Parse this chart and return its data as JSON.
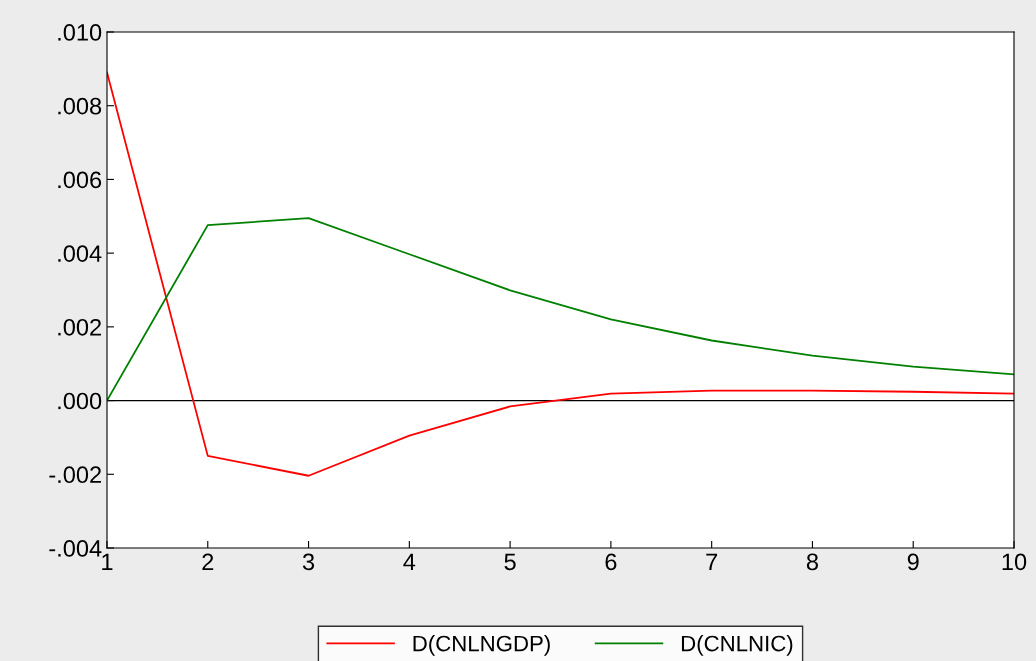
{
  "chart_data": {
    "type": "line",
    "x": [
      1,
      2,
      3,
      4,
      5,
      6,
      7,
      8,
      9,
      10
    ],
    "series": [
      {
        "name": "D(CNLNGDP)",
        "color": "#ff0000",
        "values": [
          0.0089,
          -0.0015,
          -0.00204,
          -0.00095,
          -0.00016,
          0.00019,
          0.00027,
          0.00027,
          0.00024,
          0.00019
        ]
      },
      {
        "name": "D(CNLNIC)",
        "color": "#008000",
        "values": [
          0.0,
          0.00476,
          0.00495,
          0.00397,
          0.00299,
          0.0022,
          0.00163,
          0.00122,
          0.00092,
          0.00071
        ]
      }
    ],
    "xlim": [
      1,
      10
    ],
    "xticks": [
      1,
      2,
      3,
      4,
      5,
      6,
      7,
      8,
      9,
      10
    ],
    "ylim": [
      -0.004,
      0.01
    ],
    "yticks": [
      {
        "value": -0.004,
        "label": "-.004"
      },
      {
        "value": -0.002,
        "label": "-.002"
      },
      {
        "value": 0,
        "label": ".000"
      },
      {
        "value": 0.002,
        "label": ".002"
      },
      {
        "value": 0.004,
        "label": ".004"
      },
      {
        "value": 0.006,
        "label": ".006"
      },
      {
        "value": 0.008,
        "label": ".008"
      },
      {
        "value": 0.01,
        "label": ".010"
      }
    ],
    "ref_lines": [
      {
        "axis": "y",
        "value": 0,
        "color": "#000000"
      }
    ],
    "grid": false,
    "legend": "bottom"
  }
}
